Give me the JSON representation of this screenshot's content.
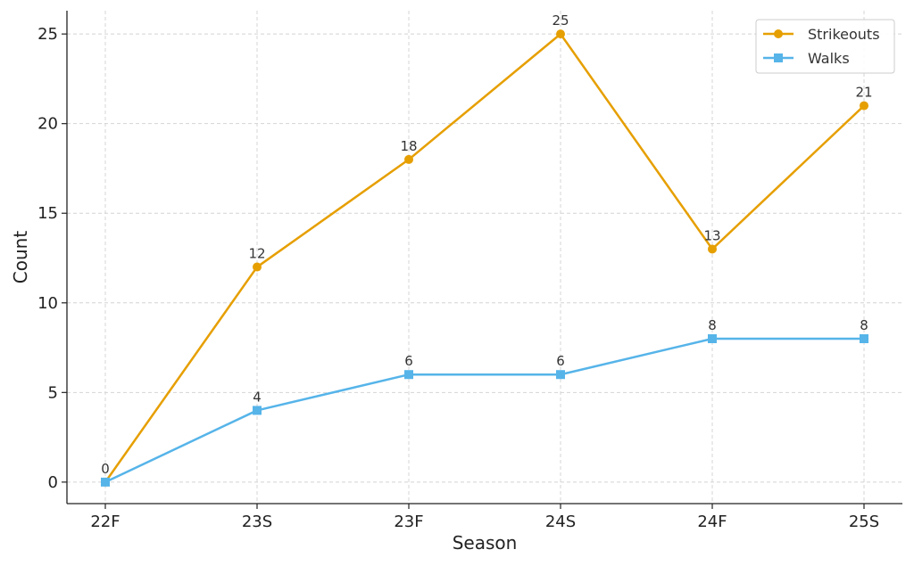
{
  "chart_data": {
    "type": "line",
    "title": "",
    "xlabel": "Season",
    "ylabel": "Count",
    "categories": [
      "22F",
      "23S",
      "23F",
      "24S",
      "24F",
      "25S"
    ],
    "ylim": [
      -1.2,
      26.3
    ],
    "yticks": [
      0,
      5,
      10,
      15,
      20,
      25
    ],
    "grid": true,
    "legend_position": "top-right",
    "series": [
      {
        "name": "Strikeouts",
        "values": [
          0,
          12,
          18,
          25,
          13,
          21
        ],
        "color": "#E69F00",
        "marker": "circle"
      },
      {
        "name": "Walks",
        "values": [
          0,
          4,
          6,
          6,
          8,
          8
        ],
        "color": "#56B4E9",
        "marker": "square"
      }
    ],
    "data_labels": [
      {
        "series": 0,
        "index": 1,
        "text": "12"
      },
      {
        "series": 0,
        "index": 2,
        "text": "18"
      },
      {
        "series": 0,
        "index": 3,
        "text": "25"
      },
      {
        "series": 0,
        "index": 4,
        "text": "13"
      },
      {
        "series": 0,
        "index": 5,
        "text": "21"
      },
      {
        "series": 1,
        "index": 0,
        "text": "0"
      },
      {
        "series": 1,
        "index": 1,
        "text": "4"
      },
      {
        "series": 1,
        "index": 2,
        "text": "6"
      },
      {
        "series": 1,
        "index": 3,
        "text": "6"
      },
      {
        "series": 1,
        "index": 4,
        "text": "8"
      },
      {
        "series": 1,
        "index": 5,
        "text": "8"
      }
    ]
  }
}
